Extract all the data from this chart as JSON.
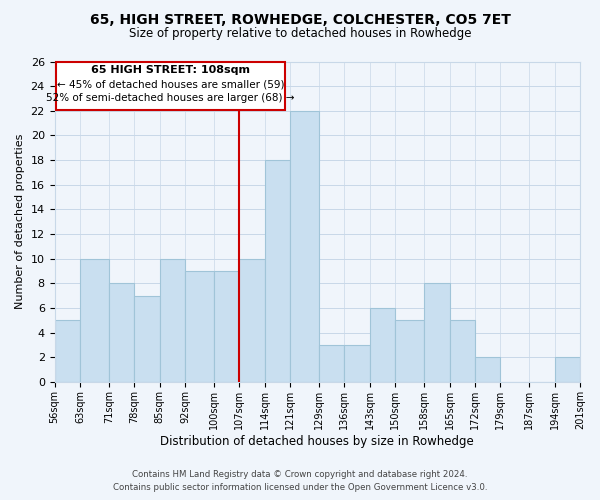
{
  "title": "65, HIGH STREET, ROWHEDGE, COLCHESTER, CO5 7ET",
  "subtitle": "Size of property relative to detached houses in Rowhedge",
  "xlabel": "Distribution of detached houses by size in Rowhedge",
  "ylabel": "Number of detached properties",
  "bin_edges": [
    56,
    63,
    71,
    78,
    85,
    92,
    100,
    107,
    114,
    121,
    129,
    136,
    143,
    150,
    158,
    165,
    172,
    179,
    187,
    194,
    201
  ],
  "bin_labels": [
    "56sqm",
    "63sqm",
    "71sqm",
    "78sqm",
    "85sqm",
    "92sqm",
    "100sqm",
    "107sqm",
    "114sqm",
    "121sqm",
    "129sqm",
    "136sqm",
    "143sqm",
    "150sqm",
    "158sqm",
    "165sqm",
    "172sqm",
    "179sqm",
    "187sqm",
    "194sqm",
    "201sqm"
  ],
  "counts": [
    5,
    10,
    8,
    7,
    10,
    9,
    9,
    10,
    18,
    22,
    3,
    3,
    6,
    5,
    8,
    5,
    2,
    0,
    0,
    2
  ],
  "bar_color": "#c9dff0",
  "bar_edge_color": "#a0c4d8",
  "vline_x": 107,
  "vline_color": "#cc0000",
  "annotation_title": "65 HIGH STREET: 108sqm",
  "annotation_line1": "← 45% of detached houses are smaller (59)",
  "annotation_line2": "52% of semi-detached houses are larger (68) →",
  "annotation_box_color": "#ffffff",
  "annotation_box_edge": "#cc0000",
  "ylim": [
    0,
    26
  ],
  "yticks": [
    0,
    2,
    4,
    6,
    8,
    10,
    12,
    14,
    16,
    18,
    20,
    22,
    24,
    26
  ],
  "footer_line1": "Contains HM Land Registry data © Crown copyright and database right 2024.",
  "footer_line2": "Contains public sector information licensed under the Open Government Licence v3.0.",
  "background_color": "#f0f5fb",
  "grid_color": "#c8d8e8"
}
